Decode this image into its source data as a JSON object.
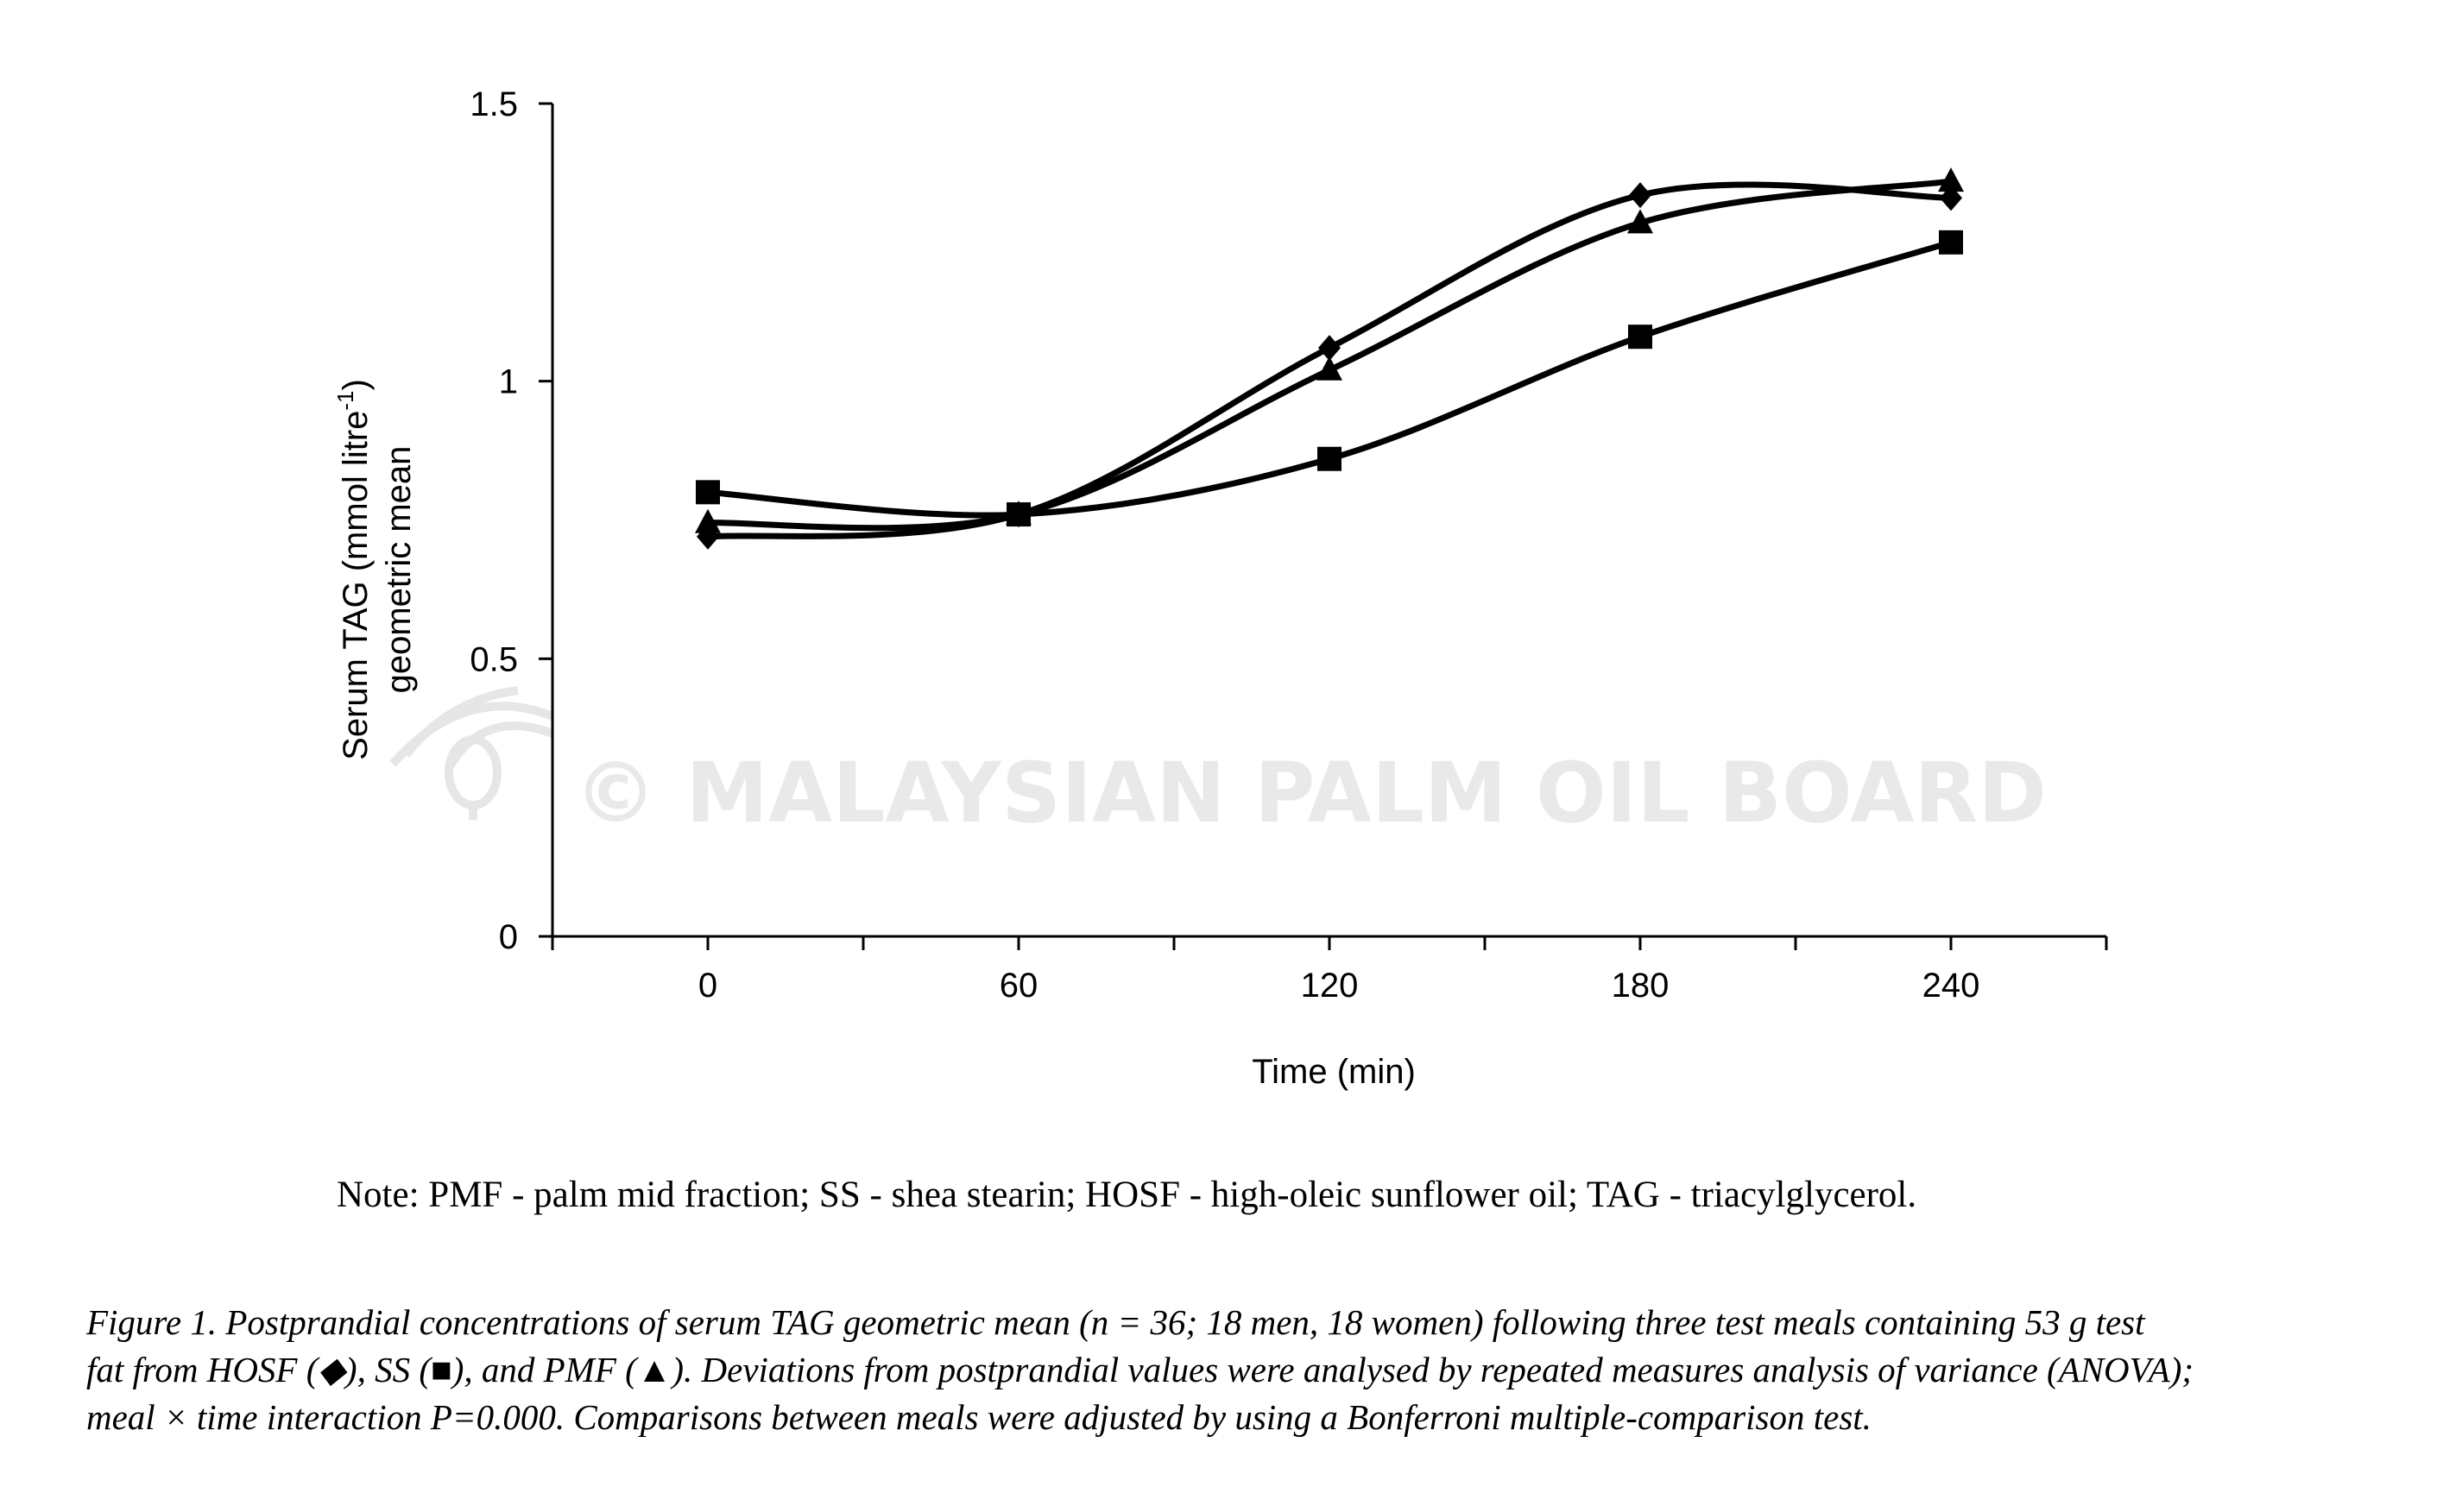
{
  "chart_data": {
    "type": "line",
    "x": [
      0,
      60,
      120,
      180,
      240
    ],
    "xlabel": "Time (min)",
    "ylabel_line1": "Serum TAG (mmol litre",
    "ylabel_sup": "-1",
    "ylabel_line1_end": ")",
    "ylabel_line2": "geometric mean",
    "xlim": [
      -30,
      270
    ],
    "ylim": [
      0,
      1.5
    ],
    "x_ticks": [
      0,
      60,
      120,
      180,
      240
    ],
    "x_tick_labels": [
      "0",
      "60",
      "120",
      "180",
      "240"
    ],
    "y_ticks": [
      0,
      0.5,
      1,
      1.5
    ],
    "y_tick_labels": [
      "0",
      "0.5",
      "1",
      "1.5"
    ],
    "grid": false,
    "series": [
      {
        "marker": "diamond",
        "values": [
          0.72,
          0.76,
          1.06,
          1.335,
          1.33
        ]
      },
      {
        "marker": "square",
        "values": [
          0.8,
          0.76,
          0.86,
          1.08,
          1.25
        ]
      },
      {
        "marker": "triangle",
        "values": [
          0.745,
          0.76,
          1.02,
          1.285,
          1.36
        ]
      }
    ],
    "line_color": "#000000"
  },
  "watermark": "© MALAYSIAN PALM OIL BOARD",
  "note": "Note: PMF - palm mid fraction; SS - shea stearin; HOSF - high-oleic sunflower oil; TAG - triacylglycerol.",
  "caption_lines": [
    "Figure 1. Postprandial concentrations of serum TAG geometric mean (n = 36; 18 men, 18 women) following three test meals containing 53 g test",
    "fat from HOSF (◆), SS (■), and PMF (▲). Deviations from postprandial values were analysed by repeated measures analysis of variance (ANOVA);",
    "meal × time interaction P=0.000. Comparisons between meals were adjusted by using a Bonferroni multiple-comparison test."
  ]
}
